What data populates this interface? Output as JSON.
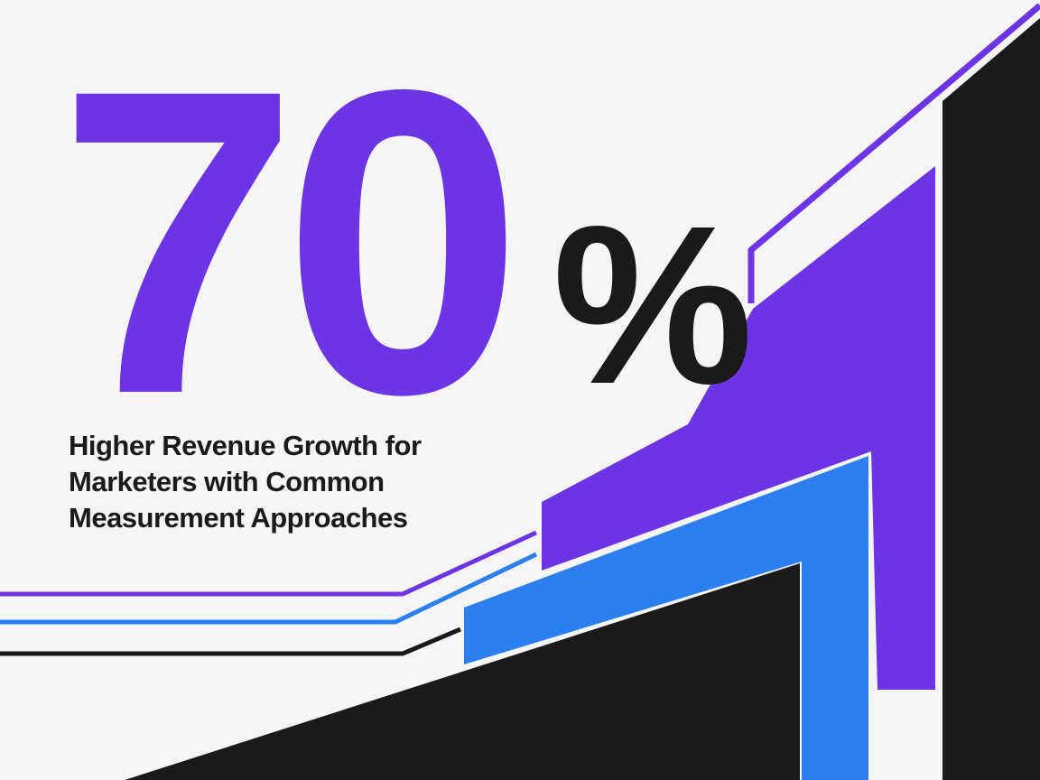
{
  "theme": {
    "background": "#f5f5f5",
    "purple": "#6c34e4",
    "blue": "#2b7ff0",
    "black": "#1a1a1a"
  },
  "stat": {
    "number": "70",
    "unit": "%"
  },
  "caption": {
    "lines": [
      "Higher Revenue Growth for",
      "Marketers with Common",
      "Measurement Approaches"
    ]
  }
}
